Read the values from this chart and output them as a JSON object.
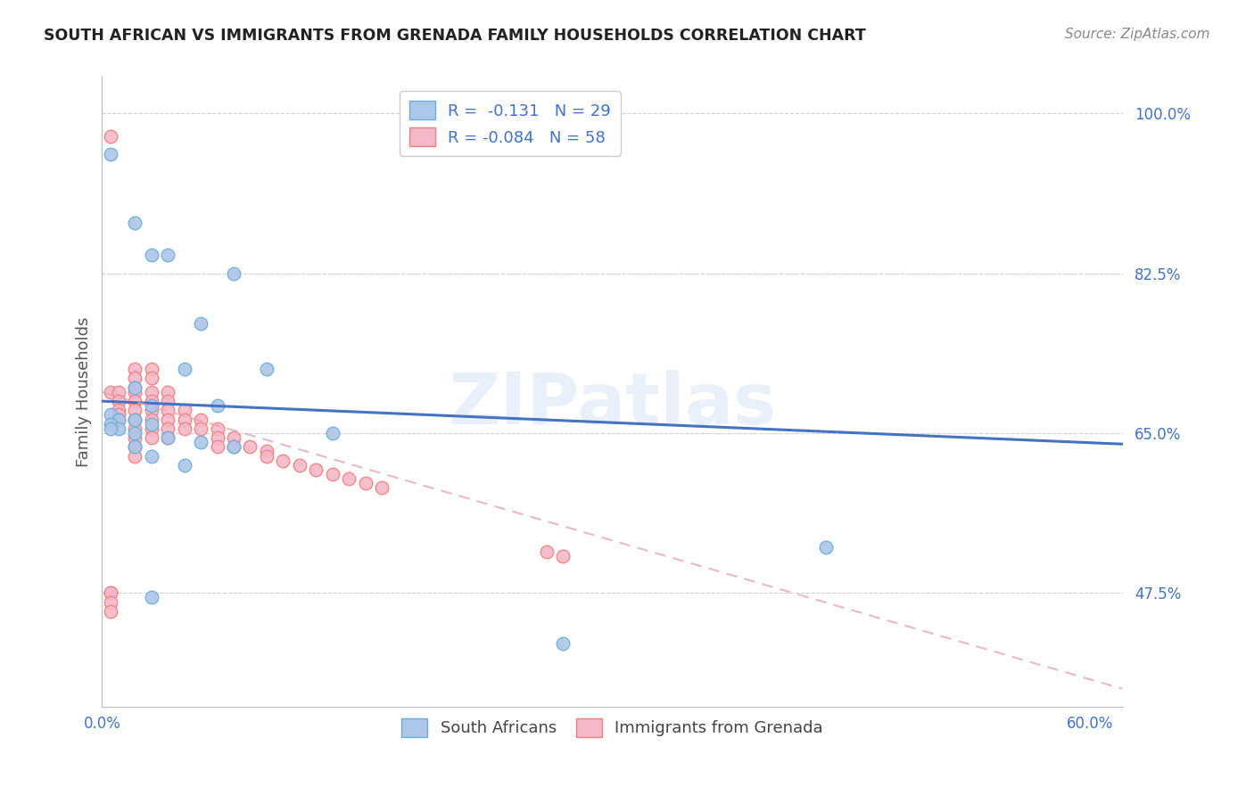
{
  "title": "SOUTH AFRICAN VS IMMIGRANTS FROM GRENADA FAMILY HOUSEHOLDS CORRELATION CHART",
  "source": "Source: ZipAtlas.com",
  "ylabel": "Family Households",
  "ytick_labels": [
    "100.0%",
    "82.5%",
    "65.0%",
    "47.5%"
  ],
  "ytick_values": [
    1.0,
    0.825,
    0.65,
    0.475
  ],
  "xlim": [
    0.0,
    0.62
  ],
  "ylim": [
    0.35,
    1.04
  ],
  "legend_entries": [
    {
      "label": "R =  -0.131   N = 29"
    },
    {
      "label": "R = -0.084   N = 58"
    }
  ],
  "legend_labels_bottom": [
    "South Africans",
    "Immigrants from Grenada"
  ],
  "blue_scatter_x": [
    0.005,
    0.02,
    0.03,
    0.04,
    0.06,
    0.02,
    0.03,
    0.05,
    0.08,
    0.005,
    0.01,
    0.02,
    0.03,
    0.07,
    0.1,
    0.005,
    0.01,
    0.02,
    0.04,
    0.06,
    0.08,
    0.14,
    0.005,
    0.02,
    0.03,
    0.05,
    0.44,
    0.03,
    0.28
  ],
  "blue_scatter_y": [
    0.955,
    0.88,
    0.845,
    0.845,
    0.77,
    0.7,
    0.68,
    0.72,
    0.825,
    0.67,
    0.665,
    0.665,
    0.66,
    0.68,
    0.72,
    0.66,
    0.655,
    0.65,
    0.645,
    0.64,
    0.635,
    0.65,
    0.655,
    0.635,
    0.625,
    0.615,
    0.525,
    0.47,
    0.42
  ],
  "pink_scatter_x": [
    0.005,
    0.005,
    0.005,
    0.01,
    0.01,
    0.01,
    0.01,
    0.01,
    0.02,
    0.02,
    0.02,
    0.02,
    0.02,
    0.02,
    0.02,
    0.02,
    0.02,
    0.02,
    0.02,
    0.03,
    0.03,
    0.03,
    0.03,
    0.03,
    0.03,
    0.03,
    0.03,
    0.04,
    0.04,
    0.04,
    0.04,
    0.04,
    0.04,
    0.05,
    0.05,
    0.05,
    0.06,
    0.06,
    0.07,
    0.07,
    0.07,
    0.08,
    0.08,
    0.09,
    0.1,
    0.1,
    0.11,
    0.12,
    0.13,
    0.14,
    0.15,
    0.16,
    0.17,
    0.27,
    0.28,
    0.005,
    0.005,
    0.005
  ],
  "pink_scatter_y": [
    0.975,
    0.695,
    0.475,
    0.695,
    0.685,
    0.675,
    0.67,
    0.665,
    0.72,
    0.71,
    0.7,
    0.695,
    0.685,
    0.675,
    0.665,
    0.655,
    0.645,
    0.635,
    0.625,
    0.72,
    0.71,
    0.695,
    0.685,
    0.675,
    0.665,
    0.655,
    0.645,
    0.695,
    0.685,
    0.675,
    0.665,
    0.655,
    0.645,
    0.675,
    0.665,
    0.655,
    0.665,
    0.655,
    0.655,
    0.645,
    0.635,
    0.645,
    0.635,
    0.635,
    0.63,
    0.625,
    0.62,
    0.615,
    0.61,
    0.605,
    0.6,
    0.595,
    0.59,
    0.52,
    0.515,
    0.475,
    0.465,
    0.455
  ],
  "blue_line_x": [
    0.0,
    0.62
  ],
  "blue_line_y": [
    0.685,
    0.638
  ],
  "pink_line_x": [
    0.0,
    0.62
  ],
  "pink_line_y": [
    0.695,
    0.37
  ],
  "blue_color": "#4472c4",
  "pink_color": "#e8a0b4",
  "blue_fill": "#aec6e8",
  "pink_fill": "#f4b8c8",
  "blue_marker_color": "#6aaed6",
  "pink_marker_color": "#f08080",
  "watermark": "ZIPatlas",
  "grid_color": "#d0d0d0",
  "title_color": "#222222",
  "right_label_color": "#4472c4",
  "source_color": "#888888",
  "background_color": "#ffffff"
}
